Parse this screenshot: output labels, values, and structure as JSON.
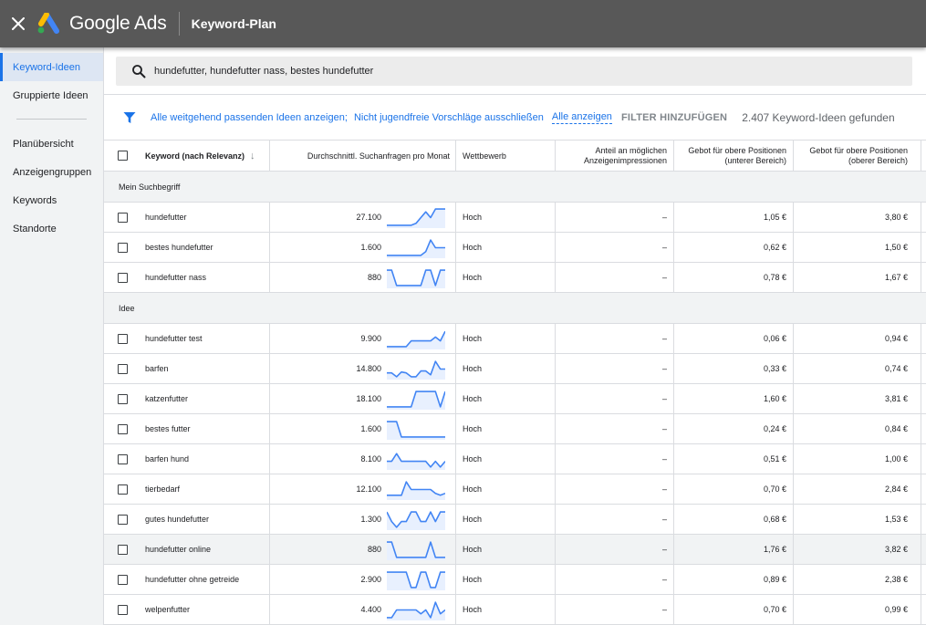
{
  "header": {
    "brand": "Google Ads",
    "page_title": "Keyword-Plan"
  },
  "sidebar": {
    "items": [
      {
        "label": "Keyword-Ideen",
        "active": true
      },
      {
        "label": "Gruppierte Ideen"
      },
      {
        "label": "Planübersicht"
      },
      {
        "label": "Anzeigengruppen"
      },
      {
        "label": "Keywords"
      },
      {
        "label": "Standorte"
      }
    ]
  },
  "search": {
    "value": "hundefutter, hundefutter nass, bestes hundefutter"
  },
  "filters": {
    "broad_match": "Alle weitgehend passenden Ideen anzeigen;",
    "exclude_adult": "Nicht jugendfreie Vorschläge ausschließen",
    "show_all": "Alle anzeigen",
    "add_filter": "FILTER HINZUFÜGEN",
    "result_count": "2.407 Keyword-Ideen gefunden"
  },
  "table": {
    "columns": {
      "keyword": "Keyword (nach Relevanz)",
      "volume": "Durchschnittl. Suchanfragen pro Monat",
      "competition": "Wettbewerb",
      "share_line1": "Anteil an möglichen",
      "share_line2": "Anzeigenimpressionen",
      "low_line1": "Gebot für obere Positionen",
      "low_line2": "(unterer Bereich)",
      "high_line1": "Gebot für obere Positionen",
      "high_line2": "(oberer Bereich)"
    },
    "groups": [
      {
        "label": "Mein Suchbegriff",
        "rows": [
          {
            "keyword": "hundefutter",
            "volume": "27.100",
            "competition": "Hoch",
            "share": "–",
            "low": "1,05 €",
            "high": "3,80 €",
            "trend": [
              0.1,
              0.1,
              0.1,
              0.1,
              0.1,
              0.1,
              0.2,
              0.5,
              0.8,
              0.5,
              0.95,
              0.95,
              0.95
            ]
          },
          {
            "keyword": "bestes hundefutter",
            "volume": "1.600",
            "competition": "Hoch",
            "share": "–",
            "low": "0,62 €",
            "high": "1,50 €",
            "trend": [
              0.1,
              0.1,
              0.1,
              0.1,
              0.1,
              0.1,
              0.1,
              0.1,
              0.3,
              0.9,
              0.5,
              0.5,
              0.5
            ]
          },
          {
            "keyword": "hundefutter nass",
            "volume": "880",
            "competition": "Hoch",
            "share": "–",
            "low": "0,78 €",
            "high": "1,67 €",
            "trend": [
              0.9,
              0.9,
              0.1,
              0.1,
              0.1,
              0.1,
              0.1,
              0.1,
              0.9,
              0.9,
              0.1,
              0.9,
              0.9
            ]
          }
        ]
      },
      {
        "label": "Idee",
        "rows": [
          {
            "keyword": "hundefutter test",
            "volume": "9.900",
            "competition": "Hoch",
            "share": "–",
            "low": "0,06 €",
            "high": "0,94 €",
            "trend": [
              0.1,
              0.1,
              0.1,
              0.1,
              0.1,
              0.4,
              0.4,
              0.4,
              0.4,
              0.4,
              0.6,
              0.4,
              0.9
            ]
          },
          {
            "keyword": "barfen",
            "volume": "14.800",
            "competition": "Hoch",
            "share": "–",
            "low": "0,33 €",
            "high": "0,74 €",
            "trend": [
              0.3,
              0.3,
              0.1,
              0.35,
              0.3,
              0.1,
              0.1,
              0.4,
              0.4,
              0.2,
              0.9,
              0.5,
              0.5
            ]
          },
          {
            "keyword": "katzenfutter",
            "volume": "18.100",
            "competition": "Hoch",
            "share": "–",
            "low": "1,60 €",
            "high": "3,81 €",
            "trend": [
              0.1,
              0.1,
              0.1,
              0.1,
              0.1,
              0.1,
              0.9,
              0.9,
              0.9,
              0.9,
              0.9,
              0.1,
              0.9
            ]
          },
          {
            "keyword": "bestes futter",
            "volume": "1.600",
            "competition": "Hoch",
            "share": "–",
            "low": "0,24 €",
            "high": "0,84 €",
            "trend": [
              0.9,
              0.9,
              0.9,
              0.1,
              0.1,
              0.1,
              0.1,
              0.1,
              0.1,
              0.1,
              0.1,
              0.1,
              0.1
            ]
          },
          {
            "keyword": "barfen hund",
            "volume": "8.100",
            "competition": "Hoch",
            "share": "–",
            "low": "0,51 €",
            "high": "1,00 €",
            "trend": [
              0.4,
              0.4,
              0.8,
              0.4,
              0.4,
              0.4,
              0.4,
              0.4,
              0.4,
              0.1,
              0.4,
              0.1,
              0.4
            ]
          },
          {
            "keyword": "tierbedarf",
            "volume": "12.100",
            "competition": "Hoch",
            "share": "–",
            "low": "0,70 €",
            "high": "2,84 €",
            "trend": [
              0.2,
              0.2,
              0.2,
              0.2,
              0.9,
              0.5,
              0.5,
              0.5,
              0.5,
              0.5,
              0.3,
              0.2,
              0.3
            ]
          },
          {
            "keyword": "gutes hundefutter",
            "volume": "1.300",
            "competition": "Hoch",
            "share": "–",
            "low": "0,68 €",
            "high": "1,53 €",
            "trend": [
              0.9,
              0.4,
              0.1,
              0.4,
              0.4,
              0.9,
              0.9,
              0.4,
              0.4,
              0.9,
              0.4,
              0.9,
              0.9
            ]
          },
          {
            "keyword": "hundefutter online",
            "volume": "880",
            "competition": "Hoch",
            "share": "–",
            "low": "1,76 €",
            "high": "3,82 €",
            "trend": [
              0.9,
              0.9,
              0.1,
              0.1,
              0.1,
              0.1,
              0.1,
              0.1,
              0.1,
              0.9,
              0.1,
              0.1,
              0.1
            ],
            "hover": true
          },
          {
            "keyword": "hundefutter ohne getreide",
            "volume": "2.900",
            "competition": "Hoch",
            "share": "–",
            "low": "0,89 €",
            "high": "2,38 €",
            "trend": [
              0.9,
              0.9,
              0.9,
              0.9,
              0.9,
              0.1,
              0.1,
              0.9,
              0.9,
              0.1,
              0.1,
              0.9,
              0.9
            ]
          },
          {
            "keyword": "welpenfutter",
            "volume": "4.400",
            "competition": "Hoch",
            "share": "–",
            "low": "0,70 €",
            "high": "0,99 €",
            "trend": [
              0.1,
              0.1,
              0.5,
              0.5,
              0.5,
              0.5,
              0.5,
              0.3,
              0.5,
              0.1,
              0.9,
              0.3,
              0.5
            ]
          }
        ]
      }
    ]
  },
  "colors": {
    "header_bg": "#585858",
    "accent": "#1a73e8",
    "sparkline": "#4285f4",
    "sparkline_fill": "#e8f0fe"
  }
}
